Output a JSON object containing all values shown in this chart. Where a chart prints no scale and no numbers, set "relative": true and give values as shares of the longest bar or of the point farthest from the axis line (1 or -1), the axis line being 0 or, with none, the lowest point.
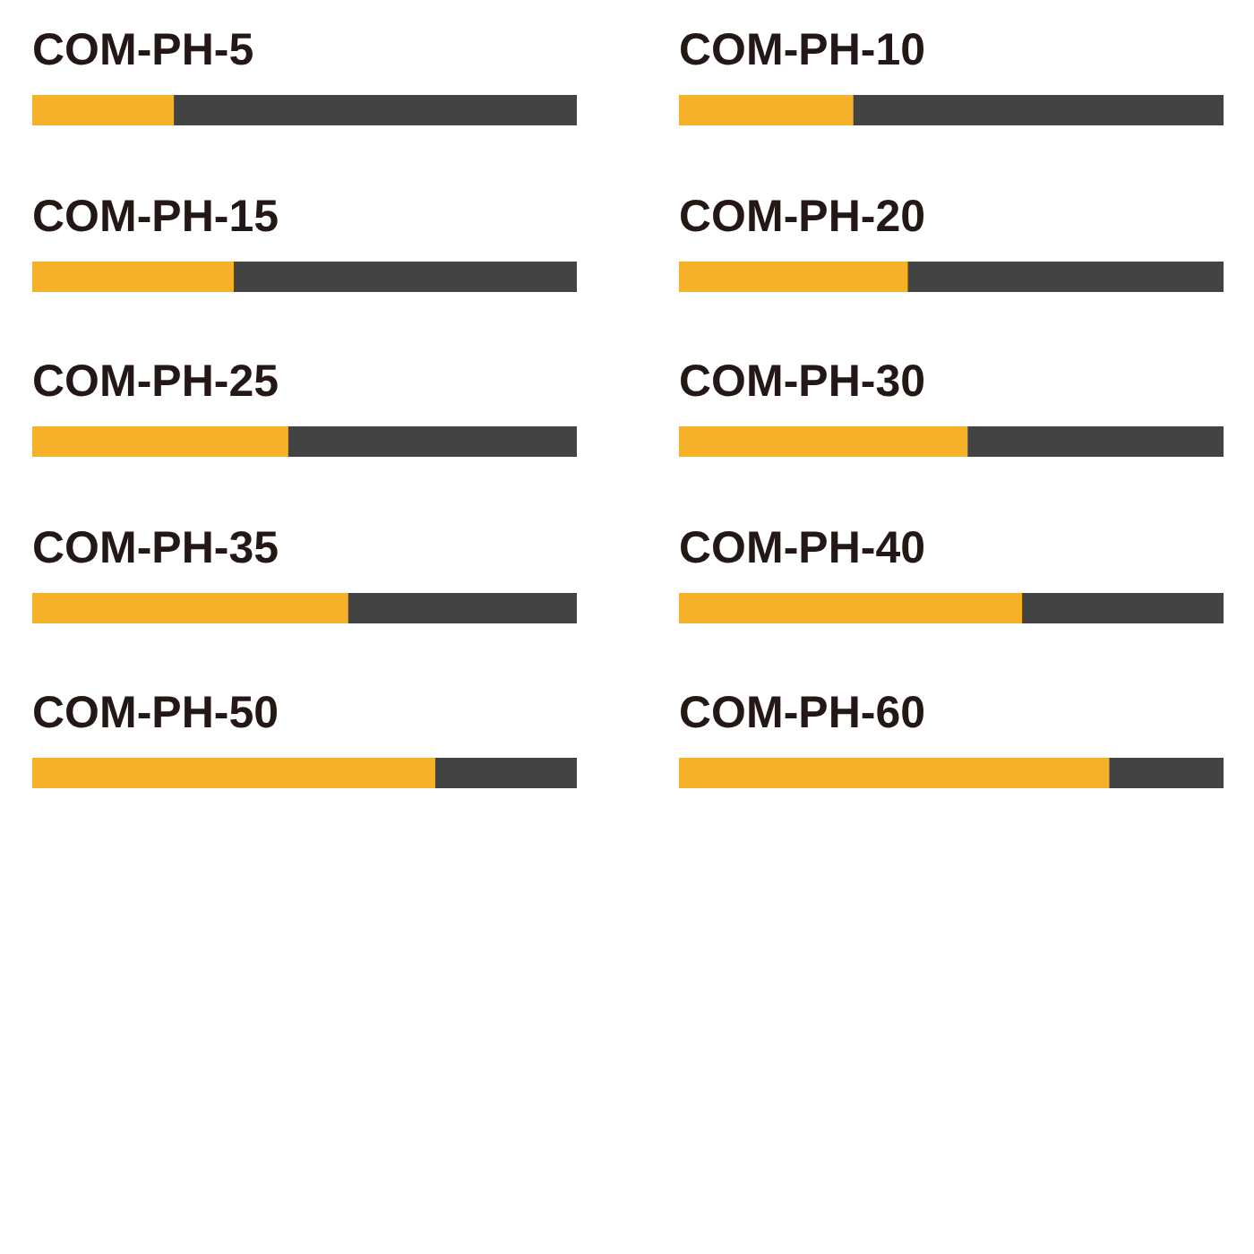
{
  "chart_data": [
    {
      "type": "bar",
      "title": "COM-PH-5",
      "orientation": "horizontal",
      "stacked": true,
      "relative": true,
      "categories": [
        null
      ],
      "series": [
        {
          "color": "#f5b12a",
          "values": [
            0.26
          ]
        },
        {
          "color": "#434343",
          "values": [
            0.74
          ]
        }
      ]
    },
    {
      "type": "bar",
      "title": "COM-PH-10",
      "orientation": "horizontal",
      "stacked": true,
      "relative": true,
      "categories": [
        null
      ],
      "series": [
        {
          "color": "#f5b12a",
          "values": [
            0.32
          ]
        },
        {
          "color": "#434343",
          "values": [
            0.68
          ]
        }
      ]
    },
    {
      "type": "bar",
      "title": "COM-PH-15",
      "orientation": "horizontal",
      "stacked": true,
      "relative": true,
      "categories": [
        null
      ],
      "series": [
        {
          "color": "#f5b12a",
          "values": [
            0.37
          ]
        },
        {
          "color": "#434343",
          "values": [
            0.63
          ]
        }
      ]
    },
    {
      "type": "bar",
      "title": "COM-PH-20",
      "orientation": "horizontal",
      "stacked": true,
      "relative": true,
      "categories": [
        null
      ],
      "series": [
        {
          "color": "#f5b12a",
          "values": [
            0.42
          ]
        },
        {
          "color": "#434343",
          "values": [
            0.58
          ]
        }
      ]
    },
    {
      "type": "bar",
      "title": "COM-PH-25",
      "orientation": "horizontal",
      "stacked": true,
      "relative": true,
      "categories": [
        null
      ],
      "series": [
        {
          "color": "#f5b12a",
          "values": [
            0.47
          ]
        },
        {
          "color": "#434343",
          "values": [
            0.53
          ]
        }
      ]
    },
    {
      "type": "bar",
      "title": "COM-PH-30",
      "orientation": "horizontal",
      "stacked": true,
      "relative": true,
      "categories": [
        null
      ],
      "series": [
        {
          "color": "#f5b12a",
          "values": [
            0.53
          ]
        },
        {
          "color": "#434343",
          "values": [
            0.47
          ]
        }
      ]
    },
    {
      "type": "bar",
      "title": "COM-PH-35",
      "orientation": "horizontal",
      "stacked": true,
      "relative": true,
      "categories": [
        null
      ],
      "series": [
        {
          "color": "#f5b12a",
          "values": [
            0.58
          ]
        },
        {
          "color": "#434343",
          "values": [
            0.42
          ]
        }
      ]
    },
    {
      "type": "bar",
      "title": "COM-PH-40",
      "orientation": "horizontal",
      "stacked": true,
      "relative": true,
      "categories": [
        null
      ],
      "series": [
        {
          "color": "#f5b12a",
          "values": [
            0.63
          ]
        },
        {
          "color": "#434343",
          "values": [
            0.37
          ]
        }
      ]
    },
    {
      "type": "bar",
      "title": "COM-PH-50",
      "orientation": "horizontal",
      "stacked": true,
      "relative": true,
      "categories": [
        null
      ],
      "series": [
        {
          "color": "#f5b12a",
          "values": [
            0.74
          ]
        },
        {
          "color": "#434343",
          "values": [
            0.26
          ]
        }
      ]
    },
    {
      "type": "bar",
      "title": "COM-PH-60",
      "orientation": "horizontal",
      "stacked": true,
      "relative": true,
      "categories": [
        null
      ],
      "series": [
        {
          "color": "#f5b12a",
          "values": [
            0.79
          ]
        },
        {
          "color": "#434343",
          "values": [
            0.21
          ]
        }
      ]
    }
  ]
}
